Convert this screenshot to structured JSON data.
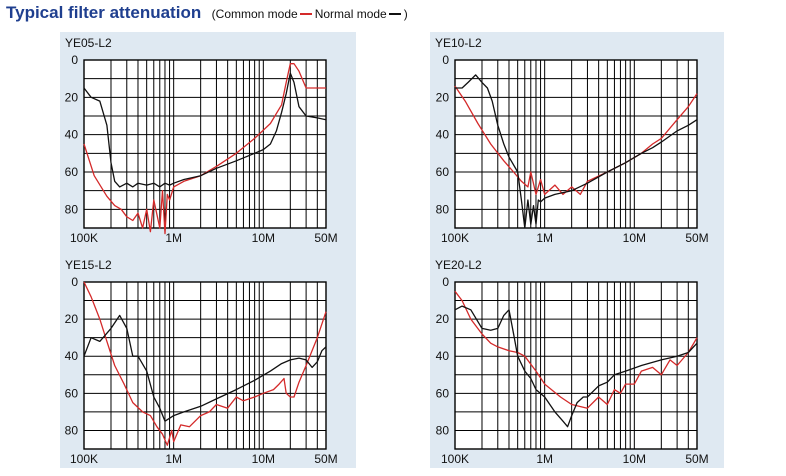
{
  "title": {
    "main": "Typical filter attenuation",
    "legend_open": "(Common mode",
    "legend_mid": "Normal mode",
    "legend_close": ")"
  },
  "colors": {
    "common_mode": "#d42a2a",
    "normal_mode": "#111111",
    "panel": "#dfe9f2"
  },
  "chart_data": [
    {
      "type": "line",
      "title": "YE05-L2",
      "xlabel": "",
      "ylabel": "",
      "x_scale": "log",
      "x_ticks": [
        "100K",
        "1M",
        "10M",
        "50M"
      ],
      "y_ticks": [
        "0",
        "20",
        "40",
        "60",
        "80"
      ],
      "xlim": [
        0.1,
        50
      ],
      "ylim": [
        0,
        90
      ],
      "grid": true,
      "series": [
        {
          "name": "Common mode",
          "color": "#d42a2a",
          "x": [
            0.1,
            0.13,
            0.18,
            0.22,
            0.26,
            0.3,
            0.35,
            0.4,
            0.45,
            0.5,
            0.55,
            0.6,
            0.7,
            0.75,
            0.8,
            0.85,
            0.9,
            1.0,
            1.3,
            2,
            3,
            5,
            8,
            12,
            16,
            18,
            20,
            22,
            25,
            30,
            40,
            50
          ],
          "y": [
            45,
            62,
            73,
            78,
            80,
            84,
            86,
            82,
            90,
            80,
            92,
            75,
            90,
            70,
            93,
            72,
            75,
            68,
            65,
            62,
            57,
            50,
            42,
            34,
            24,
            12,
            2,
            2,
            6,
            15,
            15,
            15
          ]
        },
        {
          "name": "Normal mode",
          "color": "#111111",
          "x": [
            0.1,
            0.12,
            0.15,
            0.18,
            0.2,
            0.22,
            0.25,
            0.3,
            0.35,
            0.4,
            0.5,
            0.6,
            0.7,
            0.8,
            0.9,
            1.0,
            1.3,
            2,
            3,
            5,
            8,
            10,
            12,
            14,
            16,
            18,
            20,
            22,
            25,
            30,
            40,
            50
          ],
          "y": [
            15,
            20,
            22,
            35,
            55,
            65,
            68,
            66,
            68,
            66,
            67,
            66,
            68,
            66,
            67,
            66,
            64,
            62,
            58,
            54,
            50,
            48,
            45,
            38,
            28,
            18,
            7,
            12,
            25,
            30,
            31,
            32
          ]
        }
      ]
    },
    {
      "type": "line",
      "title": "YE10-L2",
      "xlabel": "",
      "ylabel": "",
      "x_scale": "log",
      "x_ticks": [
        "100K",
        "1M",
        "10M",
        "50M"
      ],
      "y_ticks": [
        "0",
        "20",
        "40",
        "60",
        "80"
      ],
      "xlim": [
        0.1,
        50
      ],
      "ylim": [
        0,
        90
      ],
      "grid": true,
      "series": [
        {
          "name": "Common mode",
          "color": "#d42a2a",
          "x": [
            0.1,
            0.13,
            0.18,
            0.25,
            0.35,
            0.45,
            0.55,
            0.65,
            0.7,
            0.8,
            0.9,
            1.0,
            1.3,
            1.6,
            2,
            2.5,
            3,
            5,
            8,
            12,
            16,
            20,
            30,
            40,
            50
          ],
          "y": [
            14,
            22,
            34,
            45,
            54,
            60,
            65,
            68,
            60,
            72,
            64,
            72,
            67,
            72,
            68,
            72,
            65,
            60,
            55,
            50,
            45,
            42,
            32,
            25,
            18
          ]
        },
        {
          "name": "Normal mode",
          "color": "#111111",
          "x": [
            0.1,
            0.12,
            0.14,
            0.17,
            0.2,
            0.23,
            0.26,
            0.3,
            0.35,
            0.4,
            0.5,
            0.55,
            0.6,
            0.65,
            0.7,
            0.75,
            0.8,
            0.85,
            0.9,
            1.0,
            1.3,
            2,
            3,
            5,
            8,
            12,
            16,
            20,
            30,
            40,
            50
          ],
          "y": [
            15,
            15,
            12,
            8,
            12,
            15,
            22,
            35,
            45,
            52,
            60,
            75,
            90,
            75,
            88,
            78,
            88,
            75,
            76,
            74,
            72,
            70,
            66,
            60,
            55,
            50,
            47,
            44,
            38,
            35,
            32
          ]
        }
      ]
    },
    {
      "type": "line",
      "title": "YE15-L2",
      "xlabel": "",
      "ylabel": "",
      "x_scale": "log",
      "x_ticks": [
        "100K",
        "1M",
        "10M",
        "50M"
      ],
      "y_ticks": [
        "0",
        "20",
        "40",
        "60",
        "80"
      ],
      "xlim": [
        0.1,
        50
      ],
      "ylim": [
        0,
        90
      ],
      "grid": true,
      "series": [
        {
          "name": "Common mode",
          "color": "#d42a2a",
          "x": [
            0.1,
            0.12,
            0.15,
            0.18,
            0.22,
            0.28,
            0.35,
            0.45,
            0.55,
            0.65,
            0.75,
            0.85,
            0.95,
            1.0,
            1.2,
            1.5,
            2,
            2.5,
            3,
            4,
            5,
            6,
            8,
            10,
            13,
            15,
            17,
            18,
            20,
            22,
            25,
            30,
            40,
            50
          ],
          "y": [
            0,
            8,
            20,
            32,
            45,
            55,
            65,
            70,
            72,
            78,
            82,
            88,
            80,
            86,
            77,
            78,
            72,
            70,
            66,
            68,
            62,
            64,
            62,
            60,
            58,
            55,
            52,
            60,
            62,
            62,
            54,
            45,
            30,
            16
          ]
        },
        {
          "name": "Normal mode",
          "color": "#111111",
          "x": [
            0.1,
            0.12,
            0.15,
            0.2,
            0.25,
            0.3,
            0.35,
            0.4,
            0.5,
            0.6,
            0.7,
            0.8,
            1.0,
            1.3,
            2,
            3,
            5,
            8,
            12,
            16,
            20,
            25,
            30,
            35,
            40,
            45,
            50
          ],
          "y": [
            40,
            30,
            32,
            25,
            18,
            25,
            40,
            40,
            48,
            62,
            68,
            75,
            72,
            70,
            67,
            63,
            58,
            53,
            48,
            44,
            42,
            41,
            42,
            46,
            43,
            37,
            35
          ]
        }
      ]
    },
    {
      "type": "line",
      "title": "YE20-L2",
      "xlabel": "",
      "ylabel": "",
      "x_scale": "log",
      "x_ticks": [
        "100K",
        "1M",
        "10M",
        "50M"
      ],
      "y_ticks": [
        "0",
        "20",
        "40",
        "60",
        "80"
      ],
      "xlim": [
        0.1,
        50
      ],
      "ylim": [
        0,
        90
      ],
      "grid": true,
      "series": [
        {
          "name": "Common mode",
          "color": "#d42a2a",
          "x": [
            0.1,
            0.12,
            0.15,
            0.2,
            0.25,
            0.3,
            0.4,
            0.5,
            0.6,
            0.8,
            1.0,
            1.5,
            2,
            3,
            4,
            5,
            6,
            7,
            8,
            10,
            12,
            16,
            20,
            25,
            30,
            40,
            50
          ],
          "y": [
            5,
            10,
            20,
            28,
            33,
            35,
            37,
            38,
            40,
            48,
            55,
            62,
            66,
            68,
            62,
            66,
            58,
            60,
            55,
            55,
            48,
            46,
            50,
            42,
            45,
            38,
            30
          ]
        },
        {
          "name": "Normal mode",
          "color": "#111111",
          "x": [
            0.1,
            0.12,
            0.15,
            0.2,
            0.25,
            0.3,
            0.35,
            0.4,
            0.45,
            0.5,
            0.6,
            0.7,
            0.8,
            1.0,
            1.3,
            1.6,
            1.8,
            2,
            2.3,
            2.7,
            3,
            4,
            5,
            6,
            8,
            12,
            20,
            30,
            40,
            50
          ],
          "y": [
            15,
            13,
            15,
            25,
            26,
            25,
            18,
            15,
            28,
            40,
            48,
            52,
            58,
            62,
            70,
            75,
            78,
            72,
            65,
            62,
            62,
            56,
            54,
            50,
            48,
            45,
            42,
            40,
            38,
            33
          ]
        }
      ]
    }
  ]
}
